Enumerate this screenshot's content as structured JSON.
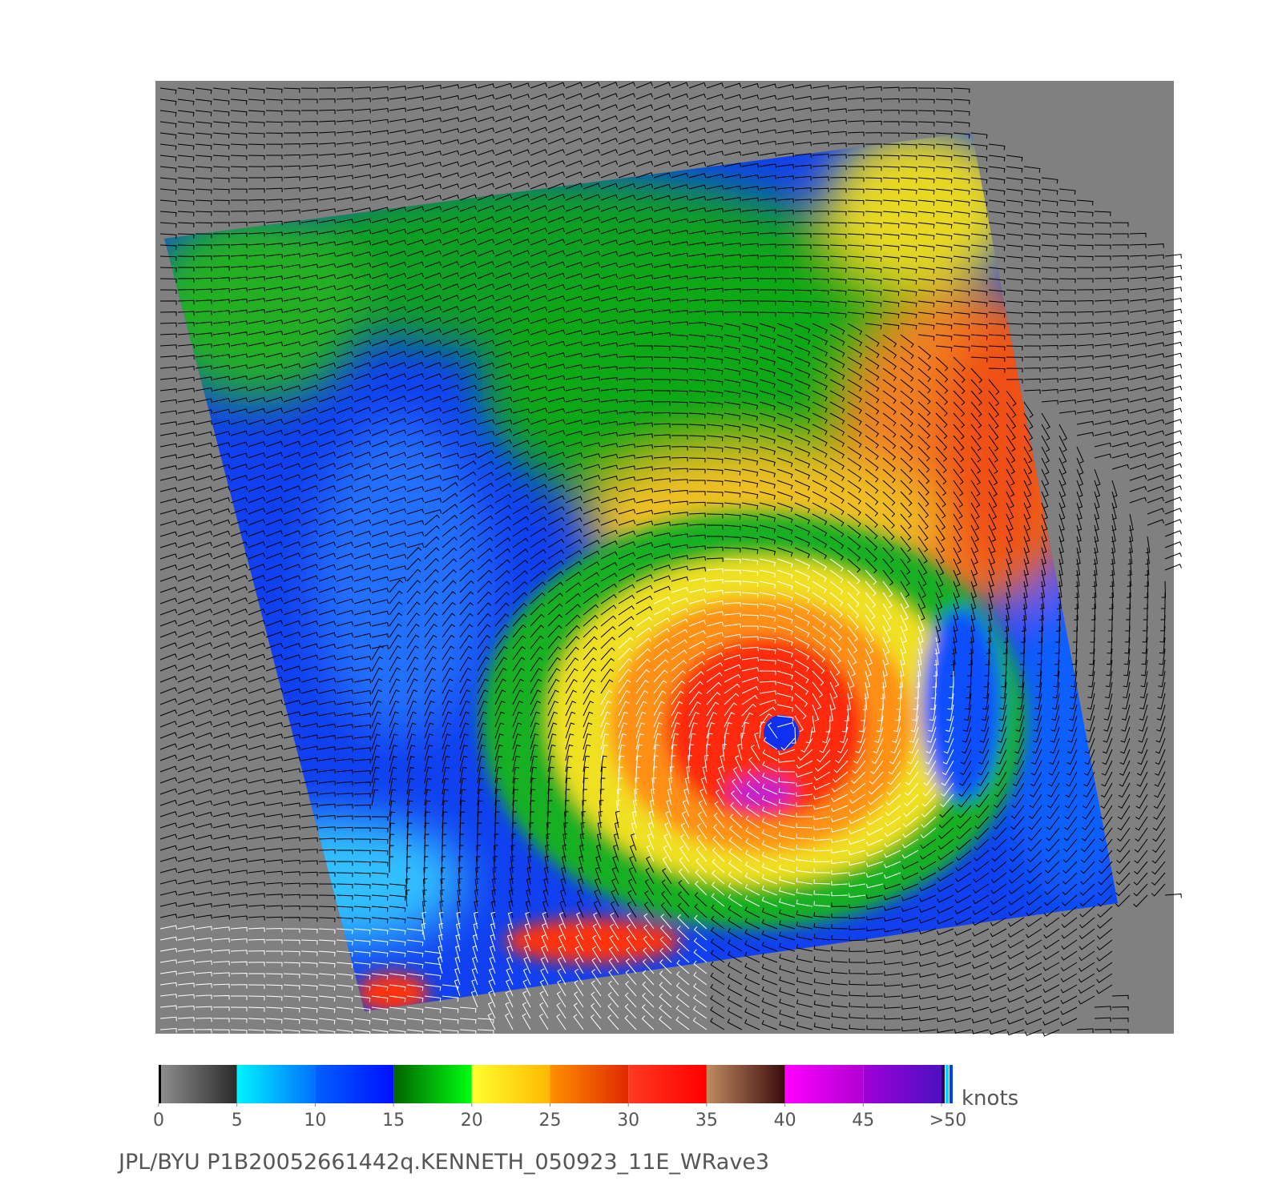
{
  "colorbar": {
    "ticks": [
      0,
      5,
      10,
      15,
      20,
      25,
      30,
      35,
      40,
      45,
      {
        "value": 50,
        "label": ">50"
      }
    ],
    "unit": "knots",
    "colors": [
      [
        "#909090",
        "#2a2a2a"
      ],
      [
        "#00f4ff",
        "#0070ff"
      ],
      [
        "#0060ff",
        "#0010ff"
      ],
      [
        "#006400",
        "#00ff10"
      ],
      [
        "#ffff30",
        "#ffb800"
      ],
      [
        "#ff9000",
        "#e02800"
      ],
      [
        "#ff3a20",
        "#ff0000"
      ],
      [
        "#c08a60",
        "#3a0c0c"
      ],
      [
        "#ff00ff",
        "#b000d0"
      ],
      [
        "#a000d8",
        "#4c10c0"
      ]
    ]
  },
  "footer": "JPL/BYU  P1B20052661442q.KENNETH_050923_11E_WRave3"
}
